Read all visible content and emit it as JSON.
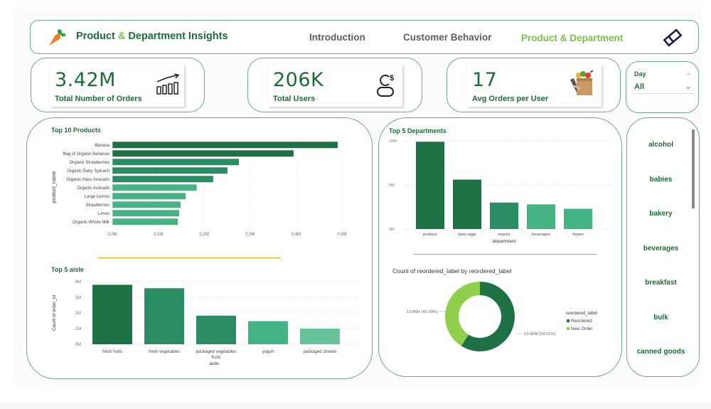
{
  "header": {
    "title_part1": "Product ",
    "title_amp": "&",
    "title_part2": " Department Insights",
    "nav": [
      {
        "label": "Introduction",
        "active": false
      },
      {
        "label": "Customer Behavior",
        "active": false
      },
      {
        "label": "Product & Department",
        "active": true
      }
    ],
    "icons": {
      "logo": "carrot-icon",
      "clear_filters": "eraser-icon"
    }
  },
  "kpis": [
    {
      "value": "3.42M",
      "label": "Total Number of Orders",
      "icon": "growth-bars-icon"
    },
    {
      "value": "206K",
      "label": "Total Users",
      "icon": "user-dollar-icon"
    },
    {
      "value": "17",
      "label": "Avg Orders per User",
      "icon": "grocery-bag-icon"
    }
  ],
  "day_slicer": {
    "label": "Day",
    "value": "All"
  },
  "department_slicer": {
    "items": [
      "alcohol",
      "babies",
      "bakery",
      "beverages",
      "breakfast",
      "bulk",
      "canned goods"
    ]
  },
  "colors": {
    "dark_green": "#1b6b36",
    "bar_dark": "#1e7145",
    "bar_mid": "#2a8c62",
    "bar_light": "#45b383",
    "bar_lighter": "#68c29a",
    "accent_light_green": "#7ac143",
    "divider_gold": "#d6a419",
    "donut_reordered": "#1e7145",
    "donut_new": "#8fcf4c"
  },
  "chart_data": [
    {
      "id": "top10products",
      "type": "bar",
      "orientation": "horizontal",
      "title": "Top 10 Products",
      "xlabel": "",
      "ylabel": "product_name",
      "categories": [
        "Banana",
        "Bag of Organic Bananas",
        "Organic Strawberries",
        "Organic Baby Spinach",
        "Organic Hass Avocado",
        "Organic Avocado",
        "Large Lemon",
        "Strawberries",
        "Limes",
        "Organic Whole Milk"
      ],
      "values": [
        491000,
        395000,
        276000,
        251000,
        220000,
        184000,
        160000,
        149000,
        146000,
        143000
      ],
      "xlim": [
        0,
        500000
      ],
      "ticks": [
        "0.0M",
        "0.1M",
        "0.2M",
        "0.3M",
        "0.4M",
        "0.5M"
      ],
      "grid": true
    },
    {
      "id": "top5aisle",
      "type": "bar",
      "title": "Top 5 aisle",
      "xlabel": "aisle",
      "ylabel": "Count of order_id",
      "categories": [
        "fresh fruits",
        "fresh vegetables",
        "packaged vegetables fruits",
        "yogurt",
        "packaged cheese"
      ],
      "values": [
        3800000,
        3580000,
        1830000,
        1480000,
        1000000
      ],
      "ylim": [
        0,
        4000000
      ],
      "ticks": [
        "0M",
        "1M",
        "2M",
        "3M",
        "4M"
      ],
      "grid": true
    },
    {
      "id": "top5departments",
      "type": "bar",
      "title": "Top 5 Departments",
      "xlabel": "department",
      "ylabel": "",
      "categories": [
        "produce",
        "dairy eggs",
        "snacks",
        "beverages",
        "frozen"
      ],
      "values": [
        9900000,
        5600000,
        3000000,
        2800000,
        2300000
      ],
      "ylim": [
        0,
        10000000
      ],
      "ticks": [
        "0M",
        "5M",
        "10M"
      ],
      "grid": true
    },
    {
      "id": "reordered",
      "type": "pie",
      "subtype": "donut",
      "title": "Count of reordered_label by reordered_label",
      "legend_title": "reordered_label",
      "legend_position": "right",
      "slices": [
        {
          "label": "Reordered",
          "value": 19.96,
          "unit": "M",
          "percent": 59.01,
          "data_label": "19.96M (59.01%)"
        },
        {
          "label": "New Order",
          "value": 13.86,
          "unit": "M",
          "percent": 40.99,
          "data_label": "13.86M (40.99%)"
        }
      ]
    }
  ]
}
